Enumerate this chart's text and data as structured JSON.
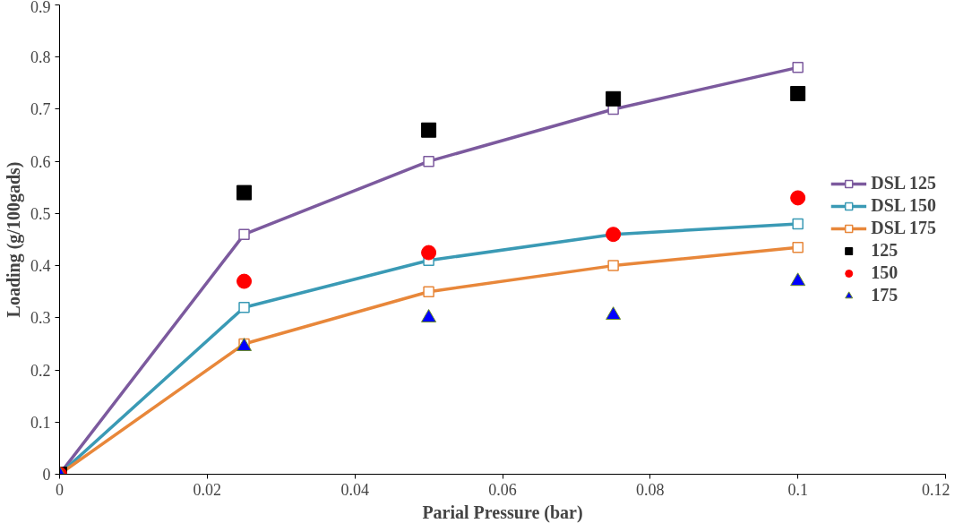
{
  "chart_data": {
    "type": "line",
    "xlabel": "Parial Pressure (bar)",
    "ylabel": "Loading (g/100gads)",
    "x": [
      0,
      0.025,
      0.05,
      0.075,
      0.1
    ],
    "xlim": [
      0,
      0.12
    ],
    "xticks": [
      0,
      0.02,
      0.04,
      0.06,
      0.08,
      0.1,
      0.12
    ],
    "ylim": [
      0,
      0.9
    ],
    "yticks": [
      0,
      0.1,
      0.2,
      0.3,
      0.4,
      0.5,
      0.6,
      0.7,
      0.8,
      0.9
    ],
    "grid": false,
    "legend": "right",
    "series": [
      {
        "name": "DSL 125",
        "type": "line",
        "marker": "square",
        "color": "#7c5a9e",
        "values": [
          0,
          0.46,
          0.6,
          0.7,
          0.78
        ]
      },
      {
        "name": "DSL 150",
        "type": "line",
        "marker": "square",
        "color": "#3a9ab5",
        "values": [
          0,
          0.32,
          0.41,
          0.46,
          0.48
        ]
      },
      {
        "name": "DSL 175",
        "type": "line",
        "marker": "square",
        "color": "#e8873a",
        "values": [
          0,
          0.25,
          0.35,
          0.4,
          0.435
        ]
      },
      {
        "name": "125",
        "type": "scatter",
        "marker": "square",
        "color": "#000000",
        "values": [
          0,
          0.54,
          0.66,
          0.72,
          0.73
        ]
      },
      {
        "name": "150",
        "type": "scatter",
        "marker": "circle",
        "color": "#ff0000",
        "values": [
          0,
          0.37,
          0.425,
          0.46,
          0.53
        ]
      },
      {
        "name": "175",
        "type": "scatter",
        "marker": "triangle",
        "color": "#0000ff",
        "values": [
          0,
          0.245,
          0.3,
          0.305,
          0.37
        ]
      }
    ]
  }
}
